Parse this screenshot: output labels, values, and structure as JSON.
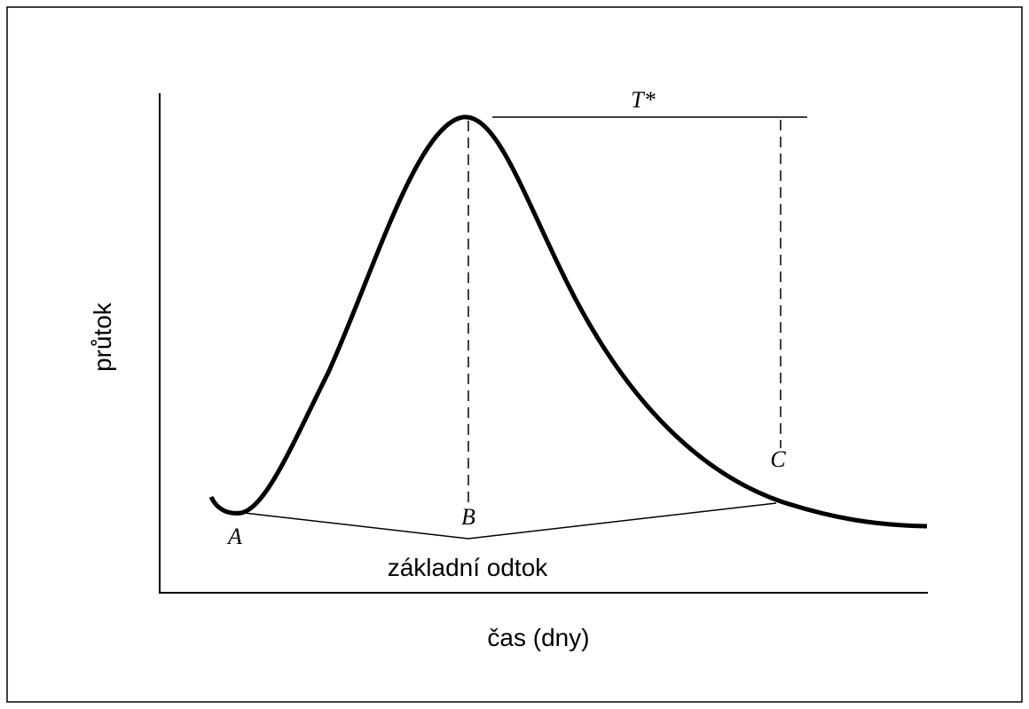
{
  "axes": {
    "y_label": "průtok",
    "x_label": "čas (dny)"
  },
  "points": [
    {
      "label": "A"
    },
    {
      "label": "B"
    },
    {
      "label": "C"
    }
  ],
  "duration_label": "T*",
  "baseflow_label": "základní odtok"
}
